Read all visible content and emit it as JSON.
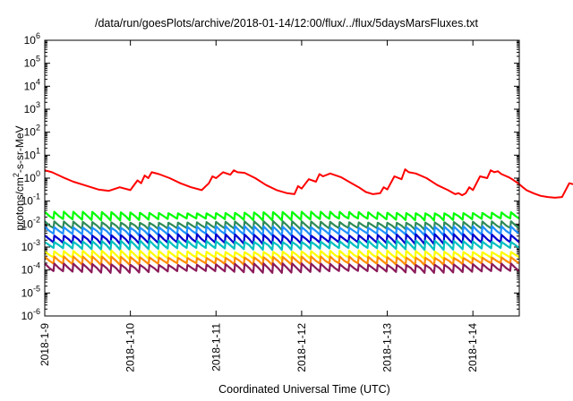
{
  "chart_data": {
    "type": "line",
    "title": "/data/run/goesPlots/archive/2018-01-14/12:00/flux/../flux/5daysMarsFluxes.txt",
    "xlabel": "Coordinated Universal Time (UTC)",
    "ylabel": "protons/cm²-s-sr-MeV",
    "y_scale": "log",
    "ylim": [
      1e-06,
      1000000.0
    ],
    "xlim": [
      "2018-01-09",
      "2018-01-14 13:00"
    ],
    "x_ticks": [
      "2018-1-9",
      "2018-1-10",
      "2018-1-11",
      "2018-1-12",
      "2018-1-13",
      "2018-1-14"
    ],
    "y_ticks": [
      {
        "base": "10",
        "exp": "-6"
      },
      {
        "base": "10",
        "exp": "-5"
      },
      {
        "base": "10",
        "exp": "-4"
      },
      {
        "base": "10",
        "exp": "-3"
      },
      {
        "base": "10",
        "exp": "-2"
      },
      {
        "base": "10",
        "exp": "-1"
      },
      {
        "base": "10",
        "exp": "0"
      },
      {
        "base": "10",
        "exp": "1"
      },
      {
        "base": "10",
        "exp": "2"
      },
      {
        "base": "10",
        "exp": "3"
      },
      {
        "base": "10",
        "exp": "4"
      },
      {
        "base": "10",
        "exp": "5"
      },
      {
        "base": "10",
        "exp": "6"
      }
    ],
    "grid": false,
    "legend": "none",
    "series": [
      {
        "color": "#ff0000",
        "x_hours": [
          0,
          2,
          5,
          8,
          11,
          15,
          18,
          21,
          24,
          26,
          27,
          28,
          29,
          30,
          32,
          35,
          38,
          41,
          44,
          46,
          47,
          48,
          50,
          52,
          53,
          54,
          56,
          59,
          62,
          65,
          68,
          70,
          71,
          72,
          74,
          76,
          77,
          78,
          80,
          83,
          86,
          88,
          90,
          92,
          94,
          95,
          96,
          98,
          100,
          101,
          102,
          104,
          107,
          110,
          113,
          115,
          116,
          117,
          118,
          119,
          120,
          122,
          124,
          125,
          126,
          127,
          128,
          130,
          131,
          133,
          134,
          135,
          137,
          139,
          141,
          143,
          145,
          147,
          149,
          151,
          153,
          155,
          157,
          158,
          159,
          160,
          162,
          164,
          166,
          168,
          170,
          173,
          176
        ],
        "values": [
          2.2,
          1.8,
          1.1,
          0.7,
          0.5,
          0.32,
          0.28,
          0.4,
          0.3,
          0.8,
          0.6,
          1.3,
          1.0,
          1.8,
          1.5,
          1.0,
          0.6,
          0.4,
          0.3,
          0.6,
          1.2,
          1.0,
          1.8,
          1.4,
          2.2,
          1.8,
          1.7,
          1.0,
          0.5,
          0.3,
          0.22,
          0.2,
          0.45,
          0.35,
          0.9,
          0.7,
          1.5,
          1.2,
          1.6,
          1.1,
          0.6,
          0.4,
          0.25,
          0.2,
          0.22,
          0.4,
          0.32,
          1.2,
          0.9,
          2.4,
          1.8,
          1.6,
          1.0,
          0.5,
          0.3,
          0.2,
          0.22,
          0.18,
          0.22,
          0.4,
          0.3,
          1.2,
          1.0,
          2.2,
          1.8,
          2.0,
          1.5,
          1.1,
          0.9,
          0.55,
          0.4,
          0.3,
          0.22,
          0.17,
          0.15,
          0.14,
          0.15,
          0.6,
          0.5,
          1.2,
          1.0,
          1.5,
          3.5,
          3.0,
          2.5,
          2.1,
          1.6,
          1.1,
          0.7,
          0.5,
          0.45,
          0.3,
          0.25
        ]
      },
      {
        "color": "#00ff00",
        "base": 0.022,
        "amp": 0.5
      },
      {
        "color": "#2e8b57",
        "base": 0.0085,
        "amp": 0.5
      },
      {
        "color": "#1e90ff",
        "base": 0.005,
        "amp": 0.55
      },
      {
        "color": "#0000cd",
        "base": 0.0022,
        "amp": 0.6
      },
      {
        "color": "#00bfbf",
        "base": 0.0012,
        "amp": 0.55
      },
      {
        "color": "#ffff00",
        "base": 0.00045,
        "amp": 0.5
      },
      {
        "color": "#ff8c00",
        "base": 0.00025,
        "amp": 0.5
      },
      {
        "color": "#8b1a5a",
        "base": 0.00012,
        "amp": 0.55
      }
    ],
    "oscillating_series_points_per_day": 9
  }
}
